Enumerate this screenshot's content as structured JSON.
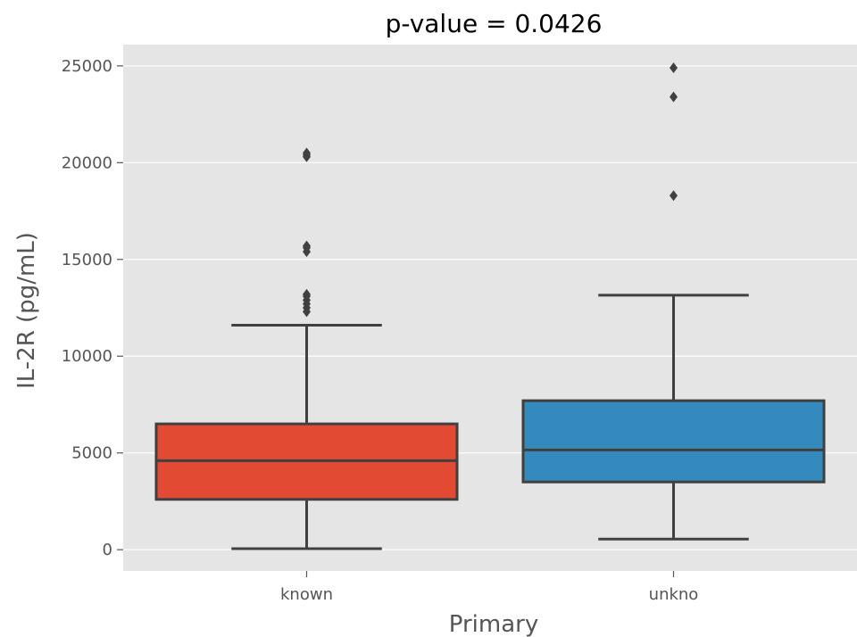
{
  "chart_data": {
    "type": "box",
    "title": "p-value = 0.0426",
    "xlabel": "Primary",
    "ylabel": "IL-2R (pg/mL)",
    "ylim": [
      -1100,
      26100
    ],
    "yticks": [
      0,
      5000,
      10000,
      15000,
      20000,
      25000
    ],
    "grid": true,
    "categories": [
      "known",
      "unkno"
    ],
    "boxes": [
      {
        "category": "known",
        "q1": 2600,
        "median": 4600,
        "q3": 6500,
        "whisker_low": 50,
        "whisker_high": 11600,
        "outliers": [
          12300,
          12500,
          12700,
          12900,
          13100,
          13200,
          15400,
          15600,
          15700,
          20300,
          20400,
          20500
        ],
        "color": "#e24a33"
      },
      {
        "category": "unkno",
        "q1": 3500,
        "median": 5150,
        "q3": 7700,
        "whisker_low": 550,
        "whisker_high": 13150,
        "outliers": [
          18300,
          23400,
          24900
        ],
        "color": "#348abd"
      }
    ],
    "colors": {
      "background": "#e5e5e5",
      "grid": "#ffffff",
      "line": "#404040",
      "outlier": "#404040"
    }
  }
}
